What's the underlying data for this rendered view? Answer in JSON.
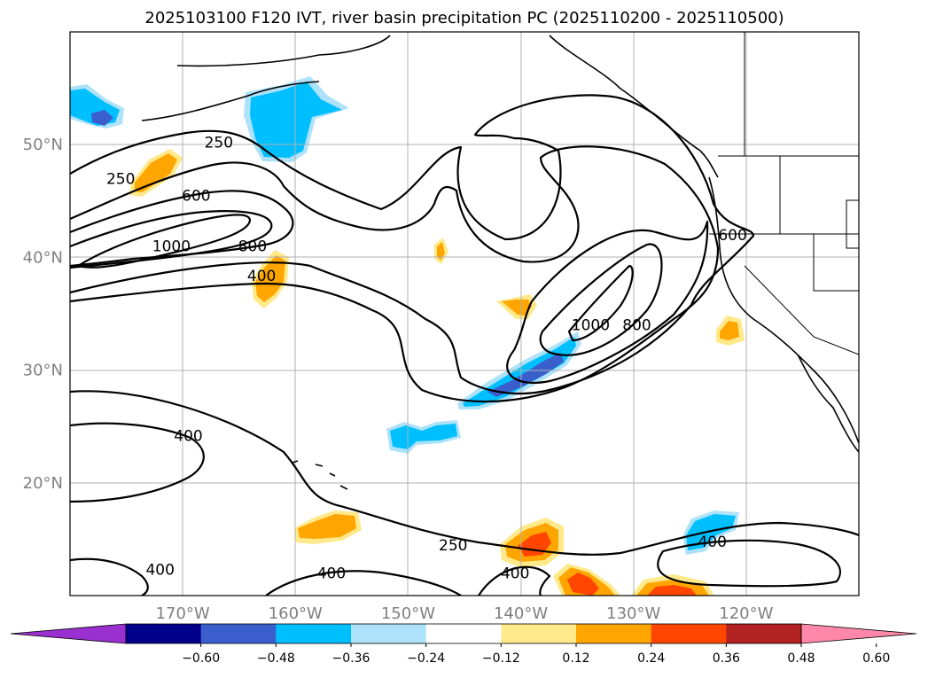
{
  "chart_data": {
    "type": "contour map",
    "title": "2025103100 F120 IVT, river basin precipitation PC (2025110200 - 2025110500)",
    "lon_range": [
      -180,
      -110
    ],
    "lat_range": [
      10,
      60
    ],
    "lon_ticks": [
      {
        "value": -170,
        "label": "170°W"
      },
      {
        "value": -160,
        "label": "160°W"
      },
      {
        "value": -150,
        "label": "150°W"
      },
      {
        "value": -140,
        "label": "140°W"
      },
      {
        "value": -130,
        "label": "130°W"
      },
      {
        "value": -120,
        "label": "120°W"
      }
    ],
    "lat_ticks": [
      {
        "value": 50,
        "label": "50°N"
      },
      {
        "value": 40,
        "label": "40°N"
      },
      {
        "value": 30,
        "label": "30°N"
      },
      {
        "value": 20,
        "label": "20°N"
      }
    ],
    "grid": true,
    "colorbar": {
      "colors": [
        "#9b30d0",
        "#00008b",
        "#3a5fcd",
        "#00bfff",
        "#aee2fa",
        "#ffffff",
        "#ffe98a",
        "#ffa500",
        "#ff4500",
        "#b22222",
        "#ff88aa"
      ],
      "tick_labels": [
        "−0.60",
        "−0.48",
        "−0.36",
        "−0.24",
        "−0.12",
        "0.12",
        "0.24",
        "0.36",
        "0.48",
        "0.60"
      ],
      "extend": "both"
    },
    "contour_labels": [
      {
        "text": "250",
        "lon": -166.8,
        "lat": 50.2
      },
      {
        "text": "250",
        "lon": -175.5,
        "lat": 47.0
      },
      {
        "text": "600",
        "lon": -168.8,
        "lat": 45.5
      },
      {
        "text": "1000",
        "lon": -171.0,
        "lat": 41.0
      },
      {
        "text": "800",
        "lon": -163.8,
        "lat": 41.0
      },
      {
        "text": "400",
        "lon": -163.0,
        "lat": 38.4
      },
      {
        "text": "600",
        "lon": -121.2,
        "lat": 42.0
      },
      {
        "text": "1000",
        "lon": -133.8,
        "lat": 34.0
      },
      {
        "text": "800",
        "lon": -129.7,
        "lat": 34.0
      },
      {
        "text": "400",
        "lon": -169.5,
        "lat": 24.2
      },
      {
        "text": "250",
        "lon": -146.0,
        "lat": 14.5
      },
      {
        "text": "400",
        "lon": -123.0,
        "lat": 14.8
      },
      {
        "text": "400",
        "lon": -172.0,
        "lat": 12.3
      },
      {
        "text": "400",
        "lon": -156.8,
        "lat": 12.0
      },
      {
        "text": "400",
        "lon": -140.5,
        "lat": 12.0
      }
    ]
  }
}
